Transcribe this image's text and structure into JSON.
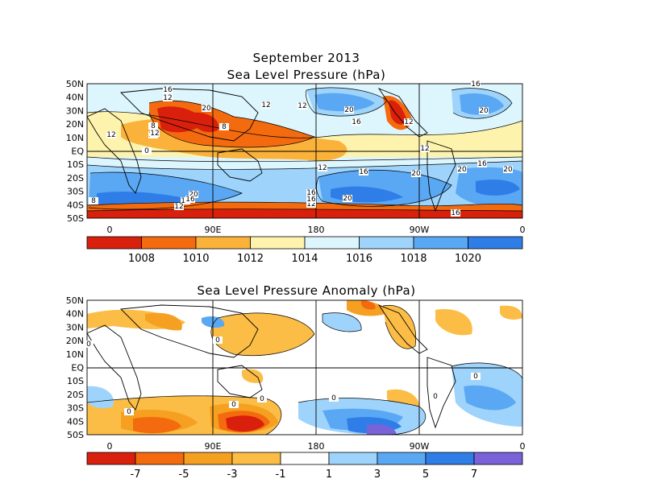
{
  "figure": {
    "month_title": "September 2013"
  },
  "panels": [
    {
      "title": "Sea Level Pressure (hPa)",
      "lat_labels": [
        "50N",
        "40N",
        "30N",
        "20N",
        "10N",
        "EQ",
        "10S",
        "20S",
        "30S",
        "40S",
        "50S"
      ],
      "lon_labels": [
        "0",
        "90E",
        "180",
        "90W",
        "0"
      ],
      "colorbar": {
        "colors": [
          "#d8200c",
          "#f46a0e",
          "#fbb23b",
          "#fef3ad",
          "#ddf6fe",
          "#9ed4fb",
          "#5aa8f4",
          "#2f7ee8"
        ],
        "labels": [
          "1008",
          "1010",
          "1012",
          "1014",
          "1016",
          "1018",
          "1020"
        ]
      },
      "contour_labels": [
        "12",
        "16",
        "20",
        "12",
        "12",
        "16",
        "20",
        "12",
        "16",
        "12",
        "12",
        "8",
        "12",
        "8",
        "0",
        "12",
        "16",
        "12",
        "16",
        "20",
        "20",
        "16",
        "12",
        "16",
        "20",
        "20",
        "12",
        "16",
        "12",
        "8",
        "20",
        "20",
        "16"
      ]
    },
    {
      "title": "Sea Level Pressure Anomaly (hPa)",
      "lat_labels": [
        "50N",
        "40N",
        "30N",
        "20N",
        "10N",
        "EQ",
        "10S",
        "20S",
        "30S",
        "40S",
        "50S"
      ],
      "lon_labels": [
        "0",
        "90E",
        "180",
        "90W",
        "0"
      ],
      "colorbar": {
        "colors": [
          "#d8200c",
          "#f46a0e",
          "#f5a020",
          "#fbbd45",
          "#ffffff",
          "#9ed4fb",
          "#5aa8f4",
          "#2f7ee8",
          "#7a62d8"
        ],
        "labels": [
          "-7",
          "-5",
          "-3",
          "-1",
          "1",
          "3",
          "5",
          "7"
        ]
      },
      "contour_labels": [
        "0",
        "0",
        "0",
        "0",
        "0",
        "0",
        "0",
        "0"
      ]
    }
  ]
}
